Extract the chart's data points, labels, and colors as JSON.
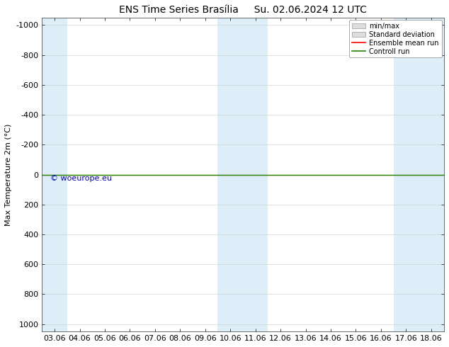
{
  "title_left": "ENS Time Series Brasília",
  "title_right": "Su. 02.06.2024 12 UTC",
  "ylabel": "Max Temperature 2m (°C)",
  "xlim_dates": [
    "03.06",
    "04.06",
    "05.06",
    "06.06",
    "07.06",
    "08.06",
    "09.06",
    "10.06",
    "11.06",
    "12.06",
    "13.06",
    "14.06",
    "15.06",
    "16.06",
    "17.06",
    "18.06"
  ],
  "yticks": [
    -1000,
    -800,
    -600,
    -400,
    -200,
    0,
    200,
    400,
    600,
    800,
    1000
  ],
  "ylim": [
    -1050,
    1050
  ],
  "background_color": "#ffffff",
  "plot_bg_color": "#ffffff",
  "blue_stripe_color": "#ddeef8",
  "blue_stripe_indices": [
    0,
    7,
    8,
    14,
    15
  ],
  "green_line_y": 0,
  "red_line_y": 0,
  "watermark": "© woeurope.eu",
  "watermark_color": "#0000cc",
  "legend_entries": [
    "min/max",
    "Standard deviation",
    "Ensemble mean run",
    "Controll run"
  ],
  "legend_colors_patch": [
    "#cccccc",
    "#cccccc"
  ],
  "legend_colors_line": [
    "#ff0000",
    "#228800"
  ],
  "title_fontsize": 10,
  "axis_fontsize": 8,
  "tick_fontsize": 8,
  "watermark_fontsize": 8
}
